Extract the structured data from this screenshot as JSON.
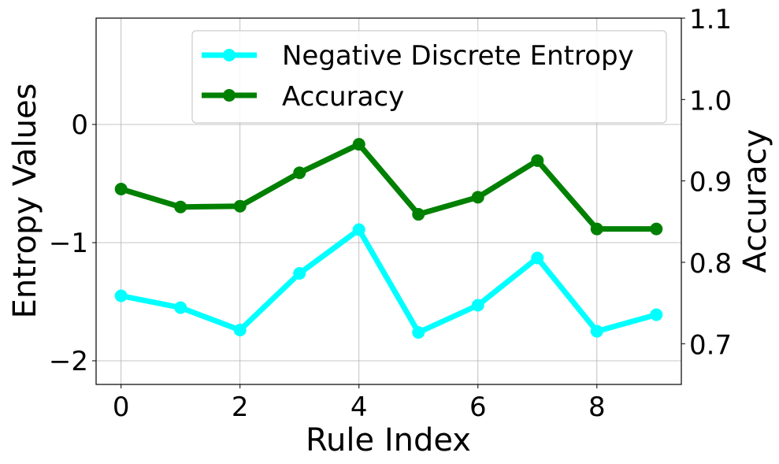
{
  "chart_data": {
    "type": "line",
    "xlabel": "Rule Index",
    "ylabel_left": "Entropy Values",
    "ylabel_right": "Accuracy",
    "x": [
      0,
      1,
      2,
      3,
      4,
      5,
      6,
      7,
      8,
      9
    ],
    "x_ticks": [
      "0",
      "2",
      "4",
      "6",
      "8"
    ],
    "xlim": [
      -0.42,
      9.42
    ],
    "ylim_left": [
      -2.2,
      0.9
    ],
    "ylim_right": [
      0.65,
      1.1
    ],
    "y_ticks_left": [
      "0",
      "−1",
      "−2"
    ],
    "y_ticks_right": [
      "0.7",
      "0.8",
      "0.9",
      "1.0",
      "1.1"
    ],
    "grid": true,
    "legend_position": "upper right",
    "series": [
      {
        "name": "Negative Discrete Entropy",
        "axis": "left",
        "color": "#00ffff",
        "values": [
          -1.45,
          -1.55,
          -1.74,
          -1.26,
          -0.89,
          -1.76,
          -1.53,
          -1.13,
          -1.75,
          -1.61
        ]
      },
      {
        "name": "Accuracy",
        "axis": "right",
        "color": "#008000",
        "values": [
          0.89,
          0.868,
          0.869,
          0.91,
          0.945,
          0.859,
          0.88,
          0.925,
          0.841,
          0.841
        ]
      }
    ]
  }
}
